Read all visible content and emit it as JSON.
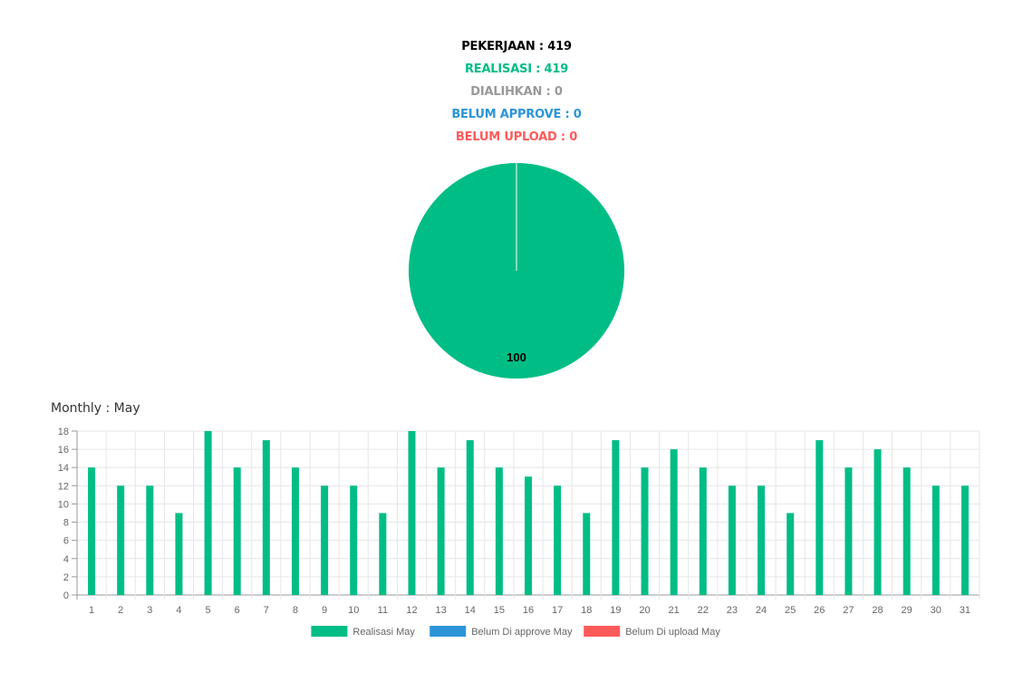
{
  "summary": {
    "pekerjaan": "PEKERJAAN : 419",
    "realisasi": "REALISASI : 419",
    "dialihkan": "DIALIHKAN : 0",
    "belum_approve": "BELUM APPROVE : 0",
    "belum_upload": "BELUM UPLOAD : 0"
  },
  "colors": {
    "pekerjaan": "#000000",
    "realisasi": "#00bd86",
    "dialihkan": "#999999",
    "belum_approve": "#2b95d8",
    "belum_upload": "#ff5a5a",
    "grid": "#e6e6e6",
    "axis": "#999999",
    "tick_text": "#666666"
  },
  "monthly_title": "Monthly : May",
  "chart_data": [
    {
      "type": "pie",
      "slices": [
        {
          "label": "Realisasi",
          "value": 100,
          "color": "#00bd86"
        }
      ],
      "data_labels": [
        "100"
      ]
    },
    {
      "type": "bar",
      "categories": [
        "1",
        "2",
        "3",
        "4",
        "5",
        "6",
        "7",
        "8",
        "9",
        "10",
        "11",
        "12",
        "13",
        "14",
        "15",
        "16",
        "17",
        "18",
        "19",
        "20",
        "21",
        "22",
        "23",
        "24",
        "25",
        "26",
        "27",
        "28",
        "29",
        "30",
        "31"
      ],
      "series": [
        {
          "name": "Realisasi May",
          "color": "#00bd86",
          "values": [
            14,
            12,
            12,
            9,
            18,
            14,
            17,
            14,
            12,
            12,
            9,
            18,
            14,
            17,
            14,
            13,
            12,
            9,
            17,
            14,
            16,
            14,
            12,
            12,
            9,
            17,
            14,
            16,
            14,
            12,
            12
          ]
        },
        {
          "name": "Belum Di approve May",
          "color": "#2b95d8",
          "values": [
            0,
            0,
            0,
            0,
            0,
            0,
            0,
            0,
            0,
            0,
            0,
            0,
            0,
            0,
            0,
            0,
            0,
            0,
            0,
            0,
            0,
            0,
            0,
            0,
            0,
            0,
            0,
            0,
            0,
            0,
            0
          ]
        },
        {
          "name": "Belum Di upload May",
          "color": "#ff5a5a",
          "values": [
            0,
            0,
            0,
            0,
            0,
            0,
            0,
            0,
            0,
            0,
            0,
            0,
            0,
            0,
            0,
            0,
            0,
            0,
            0,
            0,
            0,
            0,
            0,
            0,
            0,
            0,
            0,
            0,
            0,
            0,
            0
          ]
        }
      ],
      "ylim": [
        0,
        18
      ],
      "yticks": [
        "0",
        "2",
        "4",
        "6",
        "8",
        "10",
        "12",
        "14",
        "16",
        "18"
      ],
      "grid": true,
      "legend": "bottom"
    }
  ]
}
